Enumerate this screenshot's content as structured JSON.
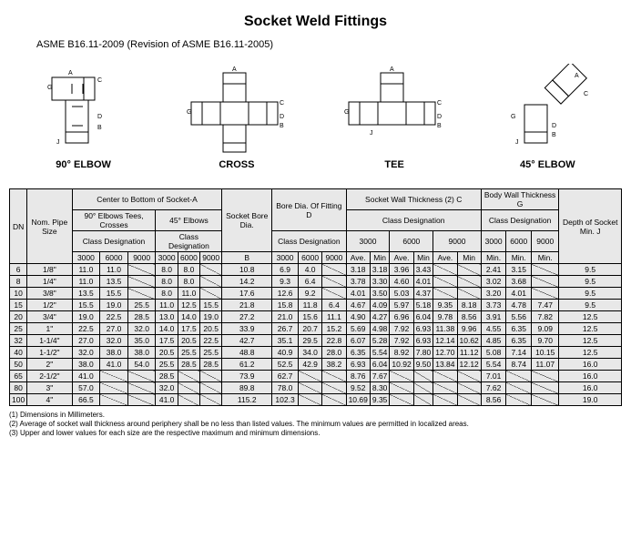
{
  "title": "Socket Weld Fittings",
  "subtitle": "ASME B16.11-2009 (Revision of ASME B16.11-2005)",
  "diagram_labels": [
    "90° ELBOW",
    "CROSS",
    "TEE",
    "45° ELBOW"
  ],
  "headers": {
    "dn": "DN",
    "nom": "Nom. Pipe Size",
    "center_a": "Center to Bottom of Socket-A",
    "elbow90": "90° Elbows Tees, Crosses",
    "elbow45": "45° Elbows",
    "class_desig": "Class Designation",
    "socket_bore": "Socket Bore Dia.",
    "bore_d": "Bore Dia. Of Fitting D",
    "socket_wall": "Socket Wall Thickness (2) C",
    "body_wall": "Body Wall Thickness G",
    "depth": "Depth of Socket Min. J",
    "b": "B",
    "c3000": "3000",
    "c6000": "6000",
    "c9000": "9000",
    "ave": "Ave.",
    "min": "Min",
    "min_dot": "Min."
  },
  "rows": [
    {
      "dn": "6",
      "nom": "1/8\"",
      "a": [
        "11.0",
        "11.0",
        "\\",
        "8.0",
        "8.0",
        "\\"
      ],
      "b": "10.8",
      "d": [
        "6.9",
        "4.0",
        "\\"
      ],
      "c": [
        "3.18",
        "3.18",
        "3.96",
        "3.43",
        "\\",
        "\\"
      ],
      "g": [
        "2.41",
        "3.15",
        "\\"
      ],
      "j": "9.5"
    },
    {
      "dn": "8",
      "nom": "1/4\"",
      "a": [
        "11.0",
        "13.5",
        "\\",
        "8.0",
        "8.0",
        "\\"
      ],
      "b": "14.2",
      "d": [
        "9.3",
        "6.4",
        "\\"
      ],
      "c": [
        "3.78",
        "3.30",
        "4.60",
        "4.01",
        "\\",
        "\\"
      ],
      "g": [
        "3.02",
        "3.68",
        "\\"
      ],
      "j": "9.5"
    },
    {
      "dn": "10",
      "nom": "3/8\"",
      "a": [
        "13.5",
        "15.5",
        "\\",
        "8.0",
        "11.0",
        "\\"
      ],
      "b": "17.6",
      "d": [
        "12.6",
        "9.2",
        "\\"
      ],
      "c": [
        "4.01",
        "3.50",
        "5.03",
        "4.37",
        "\\",
        "\\"
      ],
      "g": [
        "3.20",
        "4.01",
        "\\"
      ],
      "j": "9.5"
    },
    {
      "dn": "15",
      "nom": "1/2\"",
      "a": [
        "15.5",
        "19.0",
        "25.5",
        "11.0",
        "12.5",
        "15.5"
      ],
      "b": "21.8",
      "d": [
        "15.8",
        "11.8",
        "6.4"
      ],
      "c": [
        "4.67",
        "4.09",
        "5.97",
        "5.18",
        "9.35",
        "8.18"
      ],
      "g": [
        "3.73",
        "4.78",
        "7.47"
      ],
      "j": "9.5"
    },
    {
      "dn": "20",
      "nom": "3/4\"",
      "a": [
        "19.0",
        "22.5",
        "28.5",
        "13.0",
        "14.0",
        "19.0"
      ],
      "b": "27.2",
      "d": [
        "21.0",
        "15.6",
        "11.1"
      ],
      "c": [
        "4.90",
        "4.27",
        "6.96",
        "6.04",
        "9.78",
        "8.56"
      ],
      "g": [
        "3.91",
        "5.56",
        "7.82"
      ],
      "j": "12.5"
    },
    {
      "dn": "25",
      "nom": "1\"",
      "a": [
        "22.5",
        "27.0",
        "32.0",
        "14.0",
        "17.5",
        "20.5"
      ],
      "b": "33.9",
      "d": [
        "26.7",
        "20.7",
        "15.2"
      ],
      "c": [
        "5.69",
        "4.98",
        "7.92",
        "6.93",
        "11.38",
        "9.96"
      ],
      "g": [
        "4.55",
        "6.35",
        "9.09"
      ],
      "j": "12.5"
    },
    {
      "dn": "32",
      "nom": "1-1/4\"",
      "a": [
        "27.0",
        "32.0",
        "35.0",
        "17.5",
        "20.5",
        "22.5"
      ],
      "b": "42.7",
      "d": [
        "35.1",
        "29.5",
        "22.8"
      ],
      "c": [
        "6.07",
        "5.28",
        "7.92",
        "6.93",
        "12.14",
        "10.62"
      ],
      "g": [
        "4.85",
        "6.35",
        "9.70"
      ],
      "j": "12.5"
    },
    {
      "dn": "40",
      "nom": "1-1/2\"",
      "a": [
        "32.0",
        "38.0",
        "38.0",
        "20.5",
        "25.5",
        "25.5"
      ],
      "b": "48.8",
      "d": [
        "40.9",
        "34.0",
        "28.0"
      ],
      "c": [
        "6.35",
        "5.54",
        "8.92",
        "7.80",
        "12.70",
        "11.12"
      ],
      "g": [
        "5.08",
        "7.14",
        "10.15"
      ],
      "j": "12.5"
    },
    {
      "dn": "50",
      "nom": "2\"",
      "a": [
        "38.0",
        "41.0",
        "54.0",
        "25.5",
        "28.5",
        "28.5"
      ],
      "b": "61.2",
      "d": [
        "52.5",
        "42.9",
        "38.2"
      ],
      "c": [
        "6.93",
        "6.04",
        "10.92",
        "9.50",
        "13.84",
        "12.12"
      ],
      "g": [
        "5.54",
        "8.74",
        "11.07"
      ],
      "j": "16.0"
    },
    {
      "dn": "65",
      "nom": "2-1/2\"",
      "a": [
        "41.0",
        "\\",
        "\\",
        "28.5",
        "\\",
        "\\"
      ],
      "b": "73.9",
      "d": [
        "62.7",
        "\\",
        "\\"
      ],
      "c": [
        "8.76",
        "7.67",
        "\\",
        "\\",
        "\\",
        "\\"
      ],
      "g": [
        "7.01",
        "\\",
        "\\"
      ],
      "j": "16.0"
    },
    {
      "dn": "80",
      "nom": "3\"",
      "a": [
        "57.0",
        "\\",
        "\\",
        "32.0",
        "\\",
        "\\"
      ],
      "b": "89.8",
      "d": [
        "78.0",
        "\\",
        "\\"
      ],
      "c": [
        "9.52",
        "8.30",
        "\\",
        "\\",
        "\\",
        "\\"
      ],
      "g": [
        "7.62",
        "\\",
        "\\"
      ],
      "j": "16.0"
    },
    {
      "dn": "100",
      "nom": "4\"",
      "a": [
        "66.5",
        "\\",
        "\\",
        "41.0",
        "\\",
        "\\"
      ],
      "b": "115.2",
      "d": [
        "102.3",
        "\\",
        "\\"
      ],
      "c": [
        "10.69",
        "9.35",
        "\\",
        "\\",
        "\\",
        "\\"
      ],
      "g": [
        "8.56",
        "\\",
        "\\"
      ],
      "j": "19.0"
    }
  ],
  "notes": [
    "(1) Dimensions in Millimeters.",
    "(2) Average of socket wall thickness around periphery shall be no less than listed values. The minimum values are permitted in localized areas.",
    "(3) Upper and lower values for each size are the respective maximum and minimum dimensions."
  ]
}
